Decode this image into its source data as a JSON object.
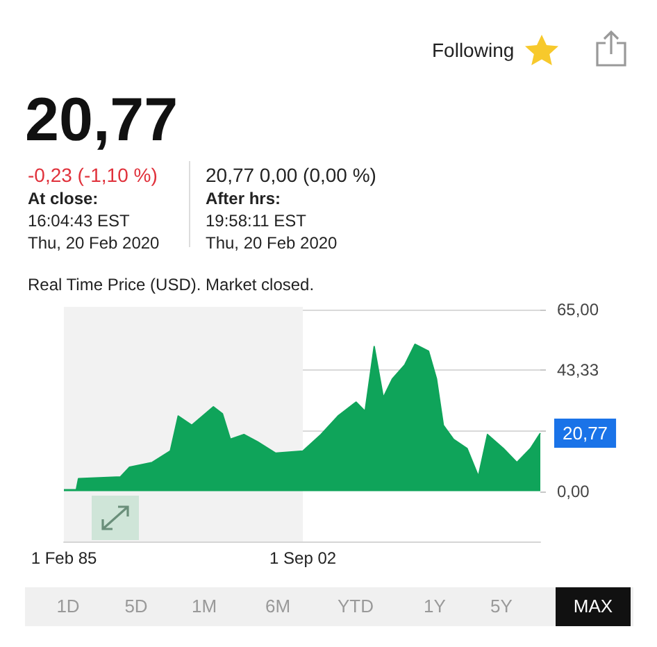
{
  "chart_data": {
    "type": "area",
    "x": [
      "1985-02",
      "1986-01",
      "1986-03",
      "1989-04",
      "1989-12",
      "1991-08",
      "1992-12",
      "1993-07",
      "1994-07",
      "1996-02",
      "1996-10",
      "1997-05",
      "1998-05",
      "1999-05",
      "2000-09",
      "2002-09",
      "2004-01",
      "2005-04",
      "2006-08",
      "2007-04",
      "2007-12",
      "2008-08",
      "2009-04",
      "2010-03",
      "2010-12",
      "2011-12",
      "2012-07",
      "2013-01",
      "2013-10",
      "2014-10",
      "2015-08",
      "2016-04",
      "2017-06",
      "2018-06",
      "2019-06",
      "2020-02-20"
    ],
    "series": [
      {
        "color": "#0fa45a",
        "value_labels": [
          null,
          null,
          null,
          null,
          null,
          null,
          null,
          null,
          null,
          null,
          null,
          null,
          null,
          null,
          null,
          null,
          null,
          null,
          null,
          null,
          null,
          null,
          null,
          null,
          null,
          null,
          null,
          null,
          null,
          null,
          null,
          null,
          null,
          null,
          null,
          "20,77"
        ],
        "values": [
          0.5,
          0.5,
          4.5,
          5.1,
          8.6,
          10.3,
          14.4,
          26.9,
          23.6,
          30.2,
          27.7,
          18.6,
          20.3,
          17.7,
          13.6,
          14.4,
          20.3,
          26.9,
          31.9,
          28.6,
          51.8,
          33.5,
          40.2,
          45.2,
          52.6,
          50.1,
          40.2,
          23.6,
          18.6,
          15.3,
          5.3,
          20.3,
          15.3,
          10.3,
          15.3,
          20.77
        ]
      }
    ],
    "xlim": [
      "1985-02-01",
      "2020-02-20"
    ],
    "xticks": [
      {
        "value": "1985-02-01",
        "label": "1 Feb 85"
      },
      {
        "value": "2002-09-01",
        "label": "1 Sep 02"
      }
    ],
    "ylim": [
      -18,
      66
    ],
    "yticks": [
      {
        "value": 0,
        "label": "0,00"
      },
      {
        "value": 21.67,
        "label": null
      },
      {
        "value": 43.33,
        "label": "43,33"
      },
      {
        "value": 65,
        "label": "65,00"
      }
    ],
    "grid": "y",
    "bands": [
      {
        "axis": "x",
        "from": "1985-02-01",
        "to": "2002-09-01",
        "label": null,
        "color": "#f2f2f2"
      }
    ],
    "annotations": [
      "20,77",
      "-0,23 (-1,10 %)",
      "At close:",
      "16:04:43 EST",
      "Thu, 20 Feb 2020",
      "20,77 0,00 (0,00 %)",
      "After hrs:",
      "19:58:11 EST",
      "Thu, 20 Feb 2020",
      "Real Time Price (USD). Market closed.",
      "Following",
      "1D",
      "5D",
      "1M",
      "6M",
      "YTD",
      "1Y",
      "5Y",
      "MAX"
    ]
  }
}
